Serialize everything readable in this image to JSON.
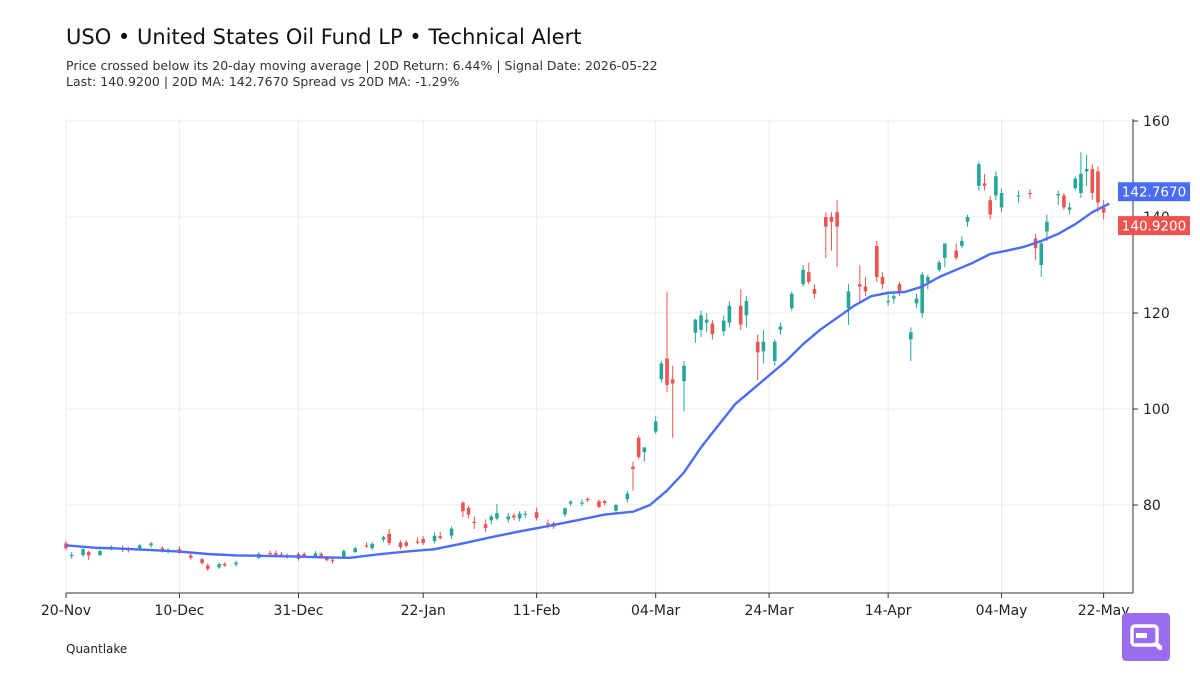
{
  "header": {
    "title": "USO • United States Oil Fund LP • Technical Alert",
    "subtitle_line1": "Price crossed below its 20-day moving average | 20D Return: 6.44% | Signal Date: 2026-05-22",
    "subtitle_line2": "Last: 140.9200 | 20D MA: 142.7670 Spread vs 20D MA: -1.29%"
  },
  "footer": {
    "brand": "Quantlake"
  },
  "colors": {
    "up": "#26a69a",
    "down": "#ef5350",
    "ma": "#4a6cf7",
    "grid": "#ececec",
    "logo": "#9b6cf0"
  },
  "chart_data": {
    "type": "candlestick",
    "x_start": "2025-11-20",
    "x_ticks": [
      {
        "label": "20-Nov",
        "day": 0
      },
      {
        "label": "10-Dec",
        "day": 20
      },
      {
        "label": "31-Dec",
        "day": 41
      },
      {
        "label": "22-Jan",
        "day": 63
      },
      {
        "label": "11-Feb",
        "day": 83
      },
      {
        "label": "04-Mar",
        "day": 104
      },
      {
        "label": "24-Mar",
        "day": 124
      },
      {
        "label": "14-Apr",
        "day": 145
      },
      {
        "label": "04-May",
        "day": 165
      },
      {
        "label": "22-May",
        "day": 183
      }
    ],
    "y_ticks": [
      80,
      100,
      120,
      140,
      160
    ],
    "ylim": [
      62,
      160
    ],
    "xlim_days": [
      0,
      188
    ],
    "badges": {
      "ma": {
        "label": "142.7670",
        "value": 142.767
      },
      "last": {
        "label": "140.9200",
        "value": 140.92
      }
    },
    "candles": [
      {
        "day": 0,
        "o": 72.0,
        "h": 72.5,
        "l": 70.5,
        "c": 71.0
      },
      {
        "day": 1,
        "o": 69.5,
        "h": 70.2,
        "l": 68.8,
        "c": 69.6
      },
      {
        "day": 3,
        "o": 69.6,
        "h": 71.0,
        "l": 69.2,
        "c": 70.8
      },
      {
        "day": 4,
        "o": 70.2,
        "h": 70.5,
        "l": 68.5,
        "c": 69.5
      },
      {
        "day": 6,
        "o": 69.6,
        "h": 70.8,
        "l": 69.3,
        "c": 70.4
      },
      {
        "day": 8,
        "o": 71.2,
        "h": 71.6,
        "l": 70.6,
        "c": 71.3
      },
      {
        "day": 10,
        "o": 71.0,
        "h": 71.6,
        "l": 70.2,
        "c": 70.6
      },
      {
        "day": 11,
        "o": 70.8,
        "h": 71.3,
        "l": 70.1,
        "c": 70.6
      },
      {
        "day": 13,
        "o": 71.0,
        "h": 71.9,
        "l": 70.6,
        "c": 71.6
      },
      {
        "day": 15,
        "o": 71.6,
        "h": 72.3,
        "l": 71.1,
        "c": 72.0
      },
      {
        "day": 17,
        "o": 71.0,
        "h": 71.4,
        "l": 70.1,
        "c": 70.4
      },
      {
        "day": 18,
        "o": 70.5,
        "h": 71.0,
        "l": 69.9,
        "c": 70.7
      },
      {
        "day": 20,
        "o": 70.8,
        "h": 71.4,
        "l": 69.8,
        "c": 70.0
      },
      {
        "day": 22,
        "o": 69.5,
        "h": 69.9,
        "l": 68.6,
        "c": 69.0
      },
      {
        "day": 24,
        "o": 68.7,
        "h": 69.0,
        "l": 67.6,
        "c": 67.9
      },
      {
        "day": 25,
        "o": 67.4,
        "h": 67.8,
        "l": 66.2,
        "c": 66.7
      },
      {
        "day": 27,
        "o": 67.0,
        "h": 68.0,
        "l": 66.7,
        "c": 67.7
      },
      {
        "day": 28,
        "o": 67.7,
        "h": 68.1,
        "l": 67.1,
        "c": 67.4
      },
      {
        "day": 30,
        "o": 67.6,
        "h": 68.4,
        "l": 67.2,
        "c": 68.0
      },
      {
        "day": 34,
        "o": 69.0,
        "h": 70.2,
        "l": 68.7,
        "c": 69.8
      },
      {
        "day": 36,
        "o": 70.0,
        "h": 70.5,
        "l": 69.4,
        "c": 69.8
      },
      {
        "day": 37,
        "o": 70.0,
        "h": 70.5,
        "l": 69.3,
        "c": 69.6
      },
      {
        "day": 38,
        "o": 69.7,
        "h": 70.2,
        "l": 69.2,
        "c": 69.6
      },
      {
        "day": 39,
        "o": 69.5,
        "h": 69.9,
        "l": 68.8,
        "c": 69.2
      },
      {
        "day": 41,
        "o": 69.8,
        "h": 70.2,
        "l": 68.4,
        "c": 68.8
      },
      {
        "day": 42,
        "o": 69.8,
        "h": 70.2,
        "l": 69.1,
        "c": 69.4
      },
      {
        "day": 44,
        "o": 69.2,
        "h": 70.4,
        "l": 68.9,
        "c": 69.9
      },
      {
        "day": 45,
        "o": 69.8,
        "h": 70.2,
        "l": 69.2,
        "c": 69.4
      },
      {
        "day": 46,
        "o": 68.9,
        "h": 69.3,
        "l": 68.2,
        "c": 68.5
      },
      {
        "day": 47,
        "o": 68.6,
        "h": 69.1,
        "l": 67.8,
        "c": 68.4
      },
      {
        "day": 49,
        "o": 69.0,
        "h": 70.8,
        "l": 68.8,
        "c": 70.4
      },
      {
        "day": 51,
        "o": 70.2,
        "h": 71.3,
        "l": 70.0,
        "c": 71.0
      },
      {
        "day": 53,
        "o": 71.6,
        "h": 72.2,
        "l": 71.0,
        "c": 71.4
      },
      {
        "day": 54,
        "o": 71.0,
        "h": 72.3,
        "l": 70.6,
        "c": 71.9
      },
      {
        "day": 56,
        "o": 72.8,
        "h": 73.6,
        "l": 72.3,
        "c": 73.3
      },
      {
        "day": 57,
        "o": 74.0,
        "h": 75.0,
        "l": 71.6,
        "c": 72.1
      },
      {
        "day": 59,
        "o": 72.2,
        "h": 72.6,
        "l": 70.8,
        "c": 71.2
      },
      {
        "day": 60,
        "o": 72.2,
        "h": 72.6,
        "l": 71.1,
        "c": 71.5
      },
      {
        "day": 62,
        "o": 72.4,
        "h": 73.2,
        "l": 71.8,
        "c": 72.2
      },
      {
        "day": 63,
        "o": 72.9,
        "h": 73.5,
        "l": 71.7,
        "c": 72.1
      },
      {
        "day": 65,
        "o": 72.5,
        "h": 74.3,
        "l": 72.0,
        "c": 73.6
      },
      {
        "day": 66,
        "o": 73.5,
        "h": 74.4,
        "l": 72.8,
        "c": 73.1
      },
      {
        "day": 68,
        "o": 73.6,
        "h": 75.5,
        "l": 72.9,
        "c": 75.1
      },
      {
        "day": 70,
        "o": 80.5,
        "h": 80.8,
        "l": 77.5,
        "c": 78.7
      },
      {
        "day": 71,
        "o": 79.4,
        "h": 79.8,
        "l": 77.2,
        "c": 78.0
      },
      {
        "day": 72,
        "o": 76.5,
        "h": 77.6,
        "l": 75.0,
        "c": 76.3
      },
      {
        "day": 74,
        "o": 76.0,
        "h": 77.0,
        "l": 74.3,
        "c": 75.2
      },
      {
        "day": 75,
        "o": 76.8,
        "h": 78.0,
        "l": 76.0,
        "c": 77.6
      },
      {
        "day": 76,
        "o": 77.2,
        "h": 80.2,
        "l": 76.8,
        "c": 78.3
      },
      {
        "day": 78,
        "o": 77.0,
        "h": 78.3,
        "l": 76.3,
        "c": 77.6
      },
      {
        "day": 79,
        "o": 77.8,
        "h": 78.3,
        "l": 76.8,
        "c": 77.4
      },
      {
        "day": 80,
        "o": 77.2,
        "h": 78.7,
        "l": 76.6,
        "c": 78.2
      },
      {
        "day": 81,
        "o": 78.0,
        "h": 78.8,
        "l": 77.3,
        "c": 78.2
      },
      {
        "day": 83,
        "o": 78.5,
        "h": 79.5,
        "l": 76.8,
        "c": 77.3
      },
      {
        "day": 85,
        "o": 76.2,
        "h": 77.0,
        "l": 75.1,
        "c": 76.0
      },
      {
        "day": 86,
        "o": 76.2,
        "h": 76.5,
        "l": 75.0,
        "c": 75.5
      },
      {
        "day": 88,
        "o": 78.0,
        "h": 79.5,
        "l": 77.5,
        "c": 79.3
      },
      {
        "day": 89,
        "o": 80.3,
        "h": 81.0,
        "l": 79.8,
        "c": 80.7
      },
      {
        "day": 91,
        "o": 80.3,
        "h": 81.2,
        "l": 79.8,
        "c": 80.5
      },
      {
        "day": 92,
        "o": 81.3,
        "h": 81.6,
        "l": 80.6,
        "c": 81.0
      },
      {
        "day": 94,
        "o": 80.8,
        "h": 81.2,
        "l": 79.3,
        "c": 79.6
      },
      {
        "day": 95,
        "o": 80.8,
        "h": 81.1,
        "l": 79.9,
        "c": 80.4
      },
      {
        "day": 97,
        "o": 78.8,
        "h": 80.2,
        "l": 78.0,
        "c": 80.0
      },
      {
        "day": 99,
        "o": 81.2,
        "h": 83.0,
        "l": 80.5,
        "c": 82.4
      },
      {
        "day": 100,
        "o": 88.0,
        "h": 89.0,
        "l": 83.0,
        "c": 87.5
      },
      {
        "day": 101,
        "o": 94.0,
        "h": 94.5,
        "l": 89.5,
        "c": 90.0
      },
      {
        "day": 102,
        "o": 91.0,
        "h": 92.0,
        "l": 89.0,
        "c": 92.0
      },
      {
        "day": 104,
        "o": 95.3,
        "h": 98.5,
        "l": 94.8,
        "c": 97.4
      },
      {
        "day": 105,
        "o": 106.2,
        "h": 110.0,
        "l": 105.5,
        "c": 109.5
      },
      {
        "day": 106,
        "o": 110.5,
        "h": 124.5,
        "l": 103.5,
        "c": 105.0
      },
      {
        "day": 107,
        "o": 106.2,
        "h": 109.0,
        "l": 94.0,
        "c": 105.3
      },
      {
        "day": 109,
        "o": 105.8,
        "h": 110.0,
        "l": 99.5,
        "c": 109.0
      },
      {
        "day": 111,
        "o": 115.9,
        "h": 118.8,
        "l": 113.8,
        "c": 118.6
      },
      {
        "day": 112,
        "o": 116.5,
        "h": 120.5,
        "l": 115.0,
        "c": 119.5
      },
      {
        "day": 113,
        "o": 118.0,
        "h": 120.0,
        "l": 116.0,
        "c": 118.6
      },
      {
        "day": 114,
        "o": 117.8,
        "h": 118.5,
        "l": 114.5,
        "c": 115.6
      },
      {
        "day": 116,
        "o": 116.2,
        "h": 119.5,
        "l": 115.3,
        "c": 118.4
      },
      {
        "day": 117,
        "o": 118.0,
        "h": 122.5,
        "l": 117.0,
        "c": 121.5
      },
      {
        "day": 119,
        "o": 121.5,
        "h": 125.0,
        "l": 116.5,
        "c": 117.6
      },
      {
        "day": 120,
        "o": 119.5,
        "h": 123.5,
        "l": 117.0,
        "c": 122.5
      },
      {
        "day": 122,
        "o": 114.0,
        "h": 115.5,
        "l": 106.0,
        "c": 111.8
      },
      {
        "day": 123,
        "o": 112.0,
        "h": 116.5,
        "l": 109.5,
        "c": 114.0
      },
      {
        "day": 125,
        "o": 110.0,
        "h": 114.5,
        "l": 109.0,
        "c": 114.0
      },
      {
        "day": 126,
        "o": 116.5,
        "h": 118.0,
        "l": 115.5,
        "c": 117.2
      },
      {
        "day": 128,
        "o": 121.0,
        "h": 124.5,
        "l": 120.5,
        "c": 124.0
      },
      {
        "day": 130,
        "o": 126.0,
        "h": 130.0,
        "l": 125.5,
        "c": 129.0
      },
      {
        "day": 131,
        "o": 128.5,
        "h": 130.5,
        "l": 126.0,
        "c": 126.5
      },
      {
        "day": 132,
        "o": 125.0,
        "h": 126.0,
        "l": 123.0,
        "c": 124.0
      },
      {
        "day": 134,
        "o": 140.0,
        "h": 141.0,
        "l": 131.5,
        "c": 138.0
      },
      {
        "day": 135,
        "o": 140.0,
        "h": 141.0,
        "l": 133.0,
        "c": 139.0
      },
      {
        "day": 136,
        "o": 141.0,
        "h": 143.5,
        "l": 129.5,
        "c": 138.0
      },
      {
        "day": 138,
        "o": 121.0,
        "h": 126.0,
        "l": 117.5,
        "c": 124.5
      },
      {
        "day": 140,
        "o": 126.0,
        "h": 130.0,
        "l": 122.0,
        "c": 125.5
      },
      {
        "day": 141,
        "o": 125.5,
        "h": 127.5,
        "l": 123.5,
        "c": 124.5
      },
      {
        "day": 143,
        "o": 134.0,
        "h": 135.0,
        "l": 126.5,
        "c": 127.5
      },
      {
        "day": 144,
        "o": 127.5,
        "h": 128.5,
        "l": 125.0,
        "c": 126.0
      },
      {
        "day": 145,
        "o": 122.5,
        "h": 124.0,
        "l": 121.5,
        "c": 122.5
      },
      {
        "day": 146,
        "o": 123.0,
        "h": 124.5,
        "l": 122.0,
        "c": 123.5
      },
      {
        "day": 147,
        "o": 126.0,
        "h": 126.5,
        "l": 123.5,
        "c": 124.5
      },
      {
        "day": 149,
        "o": 114.5,
        "h": 117.0,
        "l": 110.0,
        "c": 116.0
      },
      {
        "day": 150,
        "o": 122.0,
        "h": 124.0,
        "l": 121.0,
        "c": 123.0
      },
      {
        "day": 151,
        "o": 120.0,
        "h": 128.5,
        "l": 119.0,
        "c": 128.0
      },
      {
        "day": 152,
        "o": 126.5,
        "h": 128.0,
        "l": 125.0,
        "c": 127.5
      },
      {
        "day": 154,
        "o": 129.0,
        "h": 131.0,
        "l": 128.5,
        "c": 130.5
      },
      {
        "day": 155,
        "o": 131.5,
        "h": 134.5,
        "l": 129.5,
        "c": 134.5
      },
      {
        "day": 157,
        "o": 133.0,
        "h": 134.5,
        "l": 131.0,
        "c": 131.5
      },
      {
        "day": 158,
        "o": 134.0,
        "h": 136.0,
        "l": 133.5,
        "c": 135.0
      },
      {
        "day": 159,
        "o": 139.0,
        "h": 140.5,
        "l": 138.0,
        "c": 140.0
      },
      {
        "day": 161,
        "o": 146.5,
        "h": 151.5,
        "l": 145.5,
        "c": 151.0
      },
      {
        "day": 162,
        "o": 147.0,
        "h": 149.0,
        "l": 145.5,
        "c": 146.5
      },
      {
        "day": 163,
        "o": 143.5,
        "h": 144.5,
        "l": 139.5,
        "c": 140.5
      },
      {
        "day": 164,
        "o": 144.5,
        "h": 149.5,
        "l": 143.5,
        "c": 148.5
      },
      {
        "day": 165,
        "o": 142.0,
        "h": 146.0,
        "l": 141.0,
        "c": 145.0
      },
      {
        "day": 168,
        "o": 144.5,
        "h": 145.5,
        "l": 143.0,
        "c": 144.5
      },
      {
        "day": 170,
        "o": 145.0,
        "h": 145.8,
        "l": 143.8,
        "c": 144.8
      },
      {
        "day": 171,
        "o": 135.5,
        "h": 136.5,
        "l": 131.0,
        "c": 133.5
      },
      {
        "day": 172,
        "o": 130.0,
        "h": 135.0,
        "l": 127.5,
        "c": 134.5
      },
      {
        "day": 173,
        "o": 137.0,
        "h": 140.5,
        "l": 135.0,
        "c": 139.0
      },
      {
        "day": 175,
        "o": 144.5,
        "h": 145.5,
        "l": 142.5,
        "c": 144.8
      },
      {
        "day": 176,
        "o": 144.5,
        "h": 145.0,
        "l": 141.5,
        "c": 142.0
      },
      {
        "day": 177,
        "o": 141.5,
        "h": 143.0,
        "l": 140.5,
        "c": 142.0
      },
      {
        "day": 178,
        "o": 146.0,
        "h": 148.5,
        "l": 145.5,
        "c": 148.0
      },
      {
        "day": 179,
        "o": 145.0,
        "h": 153.5,
        "l": 144.0,
        "c": 149.0
      },
      {
        "day": 180,
        "o": 149.5,
        "h": 153.0,
        "l": 146.5,
        "c": 150.0
      },
      {
        "day": 181,
        "o": 150.0,
        "h": 151.0,
        "l": 143.5,
        "c": 145.0
      },
      {
        "day": 182,
        "o": 149.5,
        "h": 150.5,
        "l": 141.0,
        "c": 143.0
      },
      {
        "day": 183,
        "o": 142.0,
        "h": 143.5,
        "l": 139.5,
        "c": 140.92
      }
    ],
    "ma20": [
      [
        0,
        71.6
      ],
      [
        5,
        71.1
      ],
      [
        10,
        70.9
      ],
      [
        15,
        70.6
      ],
      [
        20,
        70.3
      ],
      [
        25,
        69.8
      ],
      [
        30,
        69.5
      ],
      [
        35,
        69.4
      ],
      [
        40,
        69.3
      ],
      [
        45,
        69.1
      ],
      [
        50,
        69.0
      ],
      [
        55,
        69.7
      ],
      [
        60,
        70.3
      ],
      [
        65,
        70.8
      ],
      [
        70,
        72.0
      ],
      [
        75,
        73.3
      ],
      [
        80,
        74.5
      ],
      [
        85,
        75.6
      ],
      [
        90,
        76.8
      ],
      [
        95,
        78.0
      ],
      [
        100,
        78.6
      ],
      [
        103,
        80.0
      ],
      [
        106,
        83.0
      ],
      [
        109,
        86.8
      ],
      [
        112,
        92.0
      ],
      [
        115,
        96.5
      ],
      [
        118,
        101.0
      ],
      [
        121,
        104.0
      ],
      [
        124,
        107.0
      ],
      [
        127,
        110.0
      ],
      [
        130,
        113.5
      ],
      [
        133,
        116.5
      ],
      [
        136,
        119.0
      ],
      [
        139,
        121.5
      ],
      [
        142,
        123.5
      ],
      [
        145,
        124.2
      ],
      [
        148,
        124.4
      ],
      [
        151,
        125.5
      ],
      [
        154,
        127.5
      ],
      [
        157,
        129.0
      ],
      [
        160,
        130.5
      ],
      [
        163,
        132.3
      ],
      [
        166,
        133.0
      ],
      [
        169,
        133.8
      ],
      [
        172,
        135.0
      ],
      [
        175,
        136.5
      ],
      [
        178,
        138.5
      ],
      [
        181,
        141.0
      ],
      [
        183,
        142.2
      ],
      [
        184,
        142.767
      ]
    ]
  }
}
